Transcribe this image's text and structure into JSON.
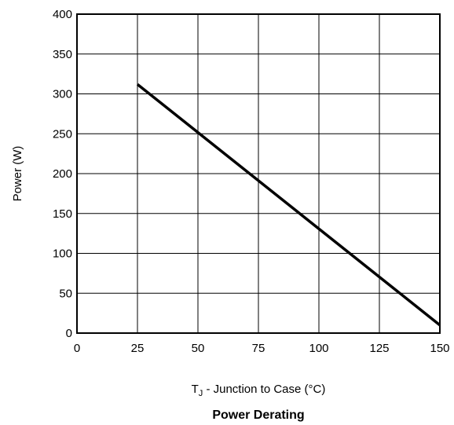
{
  "chart_data": {
    "type": "line",
    "title": "Power Derating",
    "xlabel": {
      "main": "T",
      "subscript": "J",
      "rest": " - Junction to Case (°C)"
    },
    "ylabel": "Power (W)",
    "xlim": [
      0,
      150
    ],
    "ylim": [
      0,
      400
    ],
    "x_ticks": [
      0,
      25,
      50,
      75,
      100,
      125,
      150
    ],
    "y_ticks": [
      0,
      50,
      100,
      150,
      200,
      250,
      300,
      350,
      400
    ],
    "grid": true,
    "series": [
      {
        "x": [
          25,
          150
        ],
        "y": [
          312,
          10
        ]
      }
    ]
  }
}
